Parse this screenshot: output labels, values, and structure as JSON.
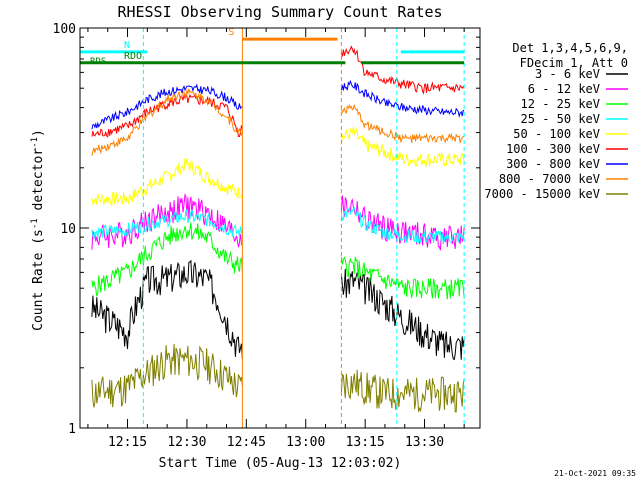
{
  "chart_data": {
    "type": "line",
    "title": "RHESSI Observing Summary Count Rates",
    "xlabel": "Start Time (05-Aug-13 12:03:02)",
    "ylabel": "Count Rate (s⁻¹ detector⁻¹)",
    "y_scale": "log",
    "ylim": [
      1,
      100
    ],
    "y_ticks": [
      "1",
      "10",
      "100"
    ],
    "xlim": [
      "12:03",
      "13:44"
    ],
    "x_ticks": [
      "12:15",
      "12:30",
      "12:45",
      "13:00",
      "13:15",
      "13:30"
    ],
    "legend_header": [
      "Det 1,3,4,5,6,9,",
      "FDecim 1, Att 0"
    ],
    "legend_placement": "right",
    "footer_date": "21-Oct-2021 09:35",
    "series": [
      {
        "name": "3 - 6 keV",
        "color": "#000000",
        "x": [
          "12:06",
          "12:15",
          "12:20",
          "12:25",
          "12:30",
          "12:35",
          "12:40",
          "12:43",
          "13:12",
          "13:15",
          "13:20",
          "13:25",
          "13:30",
          "13:35"
        ],
        "values": [
          4.0,
          3.0,
          5.5,
          5.6,
          6.0,
          5.6,
          3.5,
          2.5,
          5.5,
          5.0,
          4.2,
          3.5,
          3.0,
          2.6
        ]
      },
      {
        "name": "6 - 12 keV",
        "color": "#ff00ff",
        "x": [
          "12:06",
          "12:15",
          "12:20",
          "12:25",
          "12:30",
          "12:35",
          "12:40",
          "12:43",
          "13:12",
          "13:15",
          "13:20",
          "13:25",
          "13:30",
          "13:35"
        ],
        "values": [
          9.0,
          9.5,
          11.0,
          12.0,
          13.0,
          12.0,
          10.0,
          9.0,
          13.0,
          11.0,
          10.0,
          9.5,
          9.2,
          9.0
        ]
      },
      {
        "name": "12 - 25 keV",
        "color": "#00ff00",
        "x": [
          "12:06",
          "12:15",
          "12:20",
          "12:25",
          "12:30",
          "12:35",
          "12:40",
          "12:43",
          "13:12",
          "13:15",
          "13:20",
          "13:25",
          "13:30",
          "13:35"
        ],
        "values": [
          5.0,
          6.0,
          7.5,
          9.0,
          10.0,
          9.0,
          7.0,
          6.5,
          6.5,
          6.0,
          5.5,
          5.0,
          5.0,
          5.0
        ]
      },
      {
        "name": "25 - 50 keV",
        "color": "#00ffff",
        "x": [
          "12:06",
          "12:15",
          "12:20",
          "12:25",
          "12:30",
          "12:35",
          "12:40",
          "12:43",
          "13:12",
          "13:15",
          "13:20",
          "13:25",
          "13:30",
          "13:35"
        ],
        "values": [
          9.5,
          9.8,
          10.5,
          11.0,
          11.5,
          11.0,
          10.0,
          9.5,
          12.0,
          10.5,
          9.5,
          9.2,
          9.0,
          9.0
        ]
      },
      {
        "name": "50 - 100 keV",
        "color": "#ffff00",
        "x": [
          "12:06",
          "12:15",
          "12:20",
          "12:25",
          "12:30",
          "12:35",
          "12:40",
          "12:43",
          "13:12",
          "13:15",
          "13:20",
          "13:25",
          "13:30",
          "13:35"
        ],
        "values": [
          14.0,
          14.0,
          16.0,
          18.0,
          21.0,
          18.0,
          16.0,
          15.0,
          30.0,
          26.0,
          24.0,
          22.0,
          22.0,
          22.0
        ]
      },
      {
        "name": "100 - 300 keV",
        "color": "#ff0000",
        "x": [
          "12:06",
          "12:15",
          "12:20",
          "12:25",
          "12:30",
          "12:35",
          "12:40",
          "12:43",
          "13:12",
          "13:15",
          "13:20",
          "13:25",
          "13:30",
          "13:35"
        ],
        "values": [
          29.0,
          32.0,
          38.0,
          42.0,
          44.0,
          43.0,
          40.0,
          30.0,
          80.0,
          60.0,
          55.0,
          52.0,
          50.0,
          50.0
        ]
      },
      {
        "name": "300 - 800 keV",
        "color": "#0000ff",
        "x": [
          "12:06",
          "12:15",
          "12:20",
          "12:25",
          "12:30",
          "12:35",
          "12:40",
          "12:43",
          "13:12",
          "13:15",
          "13:20",
          "13:25",
          "13:30",
          "13:35"
        ],
        "values": [
          32.0,
          38.0,
          44.0,
          48.0,
          50.0,
          49.0,
          45.0,
          40.0,
          52.0,
          47.0,
          42.0,
          40.0,
          39.0,
          38.0
        ]
      },
      {
        "name": "800 - 7000 keV",
        "color": "#ff8000",
        "x": [
          "12:06",
          "12:15",
          "12:20",
          "12:25",
          "12:30",
          "12:35",
          "12:40",
          "12:43",
          "13:12",
          "13:15",
          "13:20",
          "13:25",
          "13:30",
          "13:35"
        ],
        "values": [
          24.0,
          28.0,
          36.0,
          44.0,
          48.0,
          44.0,
          36.0,
          30.0,
          40.0,
          33.0,
          30.0,
          28.0,
          28.0,
          28.0
        ]
      },
      {
        "name": "7000 - 15000 keV",
        "color": "#808000",
        "x": [
          "12:06",
          "12:15",
          "12:20",
          "12:25",
          "12:30",
          "12:35",
          "12:40",
          "12:43",
          "13:12",
          "13:15",
          "13:20",
          "13:25",
          "13:30",
          "13:35"
        ],
        "values": [
          1.5,
          1.6,
          1.9,
          2.2,
          2.2,
          2.1,
          1.8,
          1.6,
          1.7,
          1.6,
          1.5,
          1.5,
          1.5,
          1.5
        ]
      }
    ],
    "flags": [
      {
        "label": "N",
        "color": "#00ffff",
        "y": 76,
        "ranges": [
          [
            "12:03",
            "12:20"
          ],
          [
            "13:24",
            "13:40"
          ]
        ]
      },
      {
        "label": "RDO",
        "color": "#008000",
        "y": 67,
        "ranges": [
          [
            "12:03",
            "13:10"
          ],
          [
            "13:14",
            "13:40"
          ]
        ]
      },
      {
        "label": "S",
        "color": "#ff8000",
        "y": 88,
        "ranges": [
          [
            "12:44",
            "13:08"
          ]
        ]
      }
    ],
    "extra_labels": [
      "RDS"
    ],
    "day_night_lines": {
      "color": "#00ffff",
      "x": [
        "12:03",
        "12:19",
        "13:23",
        "13:40"
      ]
    },
    "saa_lines": {
      "color": "#ff8000",
      "x": [
        "12:44",
        "13:09"
      ]
    }
  }
}
